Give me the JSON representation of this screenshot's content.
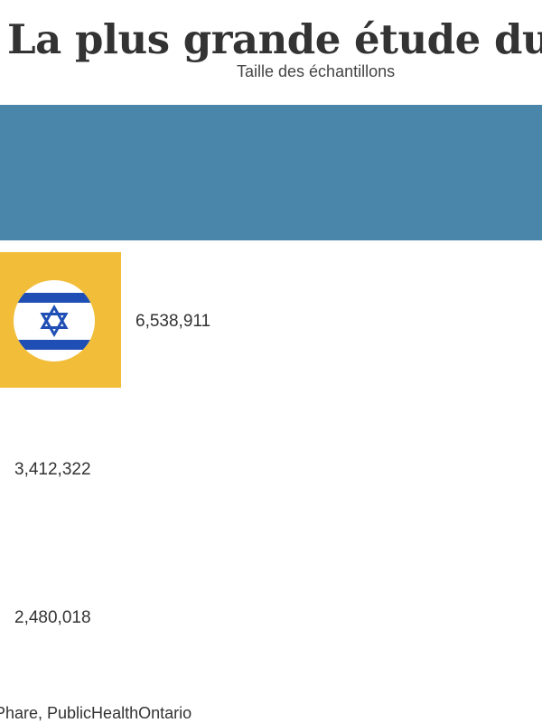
{
  "header": {
    "title": "La plus grande étude du mo",
    "subtitle": "Taille des échantillons"
  },
  "footer": {
    "source": "Phare, PublicHealthOntario"
  },
  "chart_data": {
    "type": "bar",
    "orientation": "horizontal",
    "categories": [
      "",
      "Israël",
      "",
      ""
    ],
    "values": [
      null,
      6538911,
      3412322,
      2480018
    ],
    "value_labels": [
      "",
      "6,538,911",
      "3,412,322",
      "2,480,018"
    ],
    "colors": [
      "#4a86a9",
      "#f2be3a",
      "#94c06e",
      "#cccccc"
    ],
    "icons": [
      "",
      "israel-flag-icon",
      "",
      ""
    ],
    "title": "La plus grande étude du mo",
    "subtitle": "Taille des échantillons",
    "legend": "none",
    "grid": false
  }
}
